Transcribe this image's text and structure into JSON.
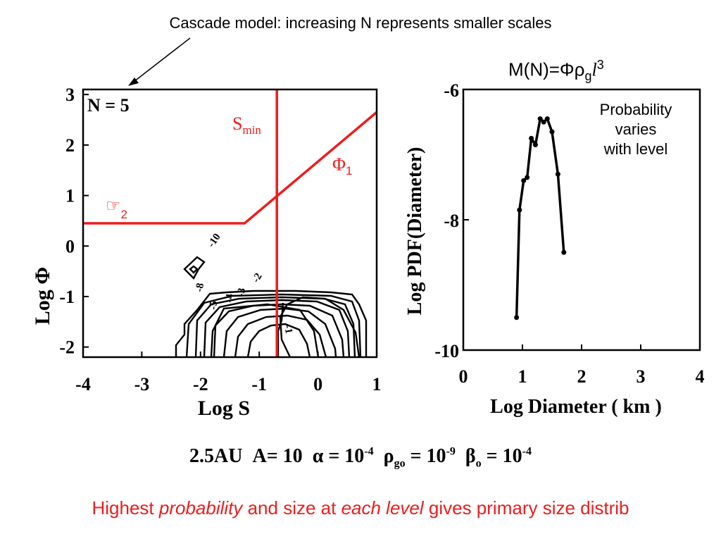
{
  "header": {
    "cascade_note": "Cascade model: increasing N represents smaller scales",
    "formula": {
      "main": "M(N)=Φρ",
      "sub": "g",
      "l": "l",
      "sup": "3"
    },
    "probability_note": [
      "Probability",
      "varies",
      "with level"
    ]
  },
  "params_line": {
    "au": "2.5AU",
    "a": "A= 10",
    "alpha": "α = 10",
    "alpha_exp": "-4",
    "rho": "ρ",
    "rho_sub": "go",
    "rho_val": " = 10",
    "rho_exp": "-9",
    "beta": "β",
    "beta_sub": "o",
    "beta_val": " = 10",
    "beta_exp": "-4"
  },
  "footer": {
    "part1": "Highest ",
    "part2": "probability",
    "part3": " and size at ",
    "part4": "each level",
    "part5": " gives primary size distrib"
  },
  "colors": {
    "accent_red": "#ee1c1c",
    "ink": "#000000",
    "background": "#ffffff"
  },
  "chart_data": [
    {
      "type": "contour",
      "panel_label": "N =  5",
      "xlabel": "Log S",
      "ylabel": "Log Φ",
      "xlim": [
        -4,
        1
      ],
      "ylim": [
        -2.2,
        3.1
      ],
      "xticks": [
        "-4",
        "-3",
        "-2",
        "-1",
        "0",
        "1"
      ],
      "yticks": [
        "3",
        "2",
        "1",
        "0",
        "-1",
        "-2"
      ],
      "contour_labels": [
        "-10",
        "-8",
        "-5",
        "-3",
        "-2",
        "-1",
        "-4"
      ],
      "annotations": {
        "smin_main": "S",
        "smin_sub": "min",
        "phi1_main": "Φ",
        "phi1_sub": "1",
        "phi2_main": "☞",
        "phi2_sub": "2"
      },
      "lines": {
        "smin_logS": -0.7,
        "phi2_logPhi": 0.45,
        "phi2_end_logS": -1.25,
        "phi1_end": [
          1.0,
          2.65
        ]
      }
    },
    {
      "type": "line",
      "xlabel": "Log Diameter ( km )",
      "ylabel": "Log PDF(Diameter)",
      "xlim": [
        0,
        4
      ],
      "ylim": [
        -10,
        -6
      ],
      "xticks": [
        "0",
        "1",
        "2",
        "3",
        "4"
      ],
      "yticks": [
        "-6",
        "-8",
        "-10"
      ],
      "x": [
        0.9,
        0.95,
        1.02,
        1.08,
        1.15,
        1.22,
        1.3,
        1.36,
        1.42,
        1.5,
        1.6,
        1.7
      ],
      "y": [
        -9.5,
        -7.85,
        -7.4,
        -7.35,
        -6.75,
        -6.85,
        -6.45,
        -6.5,
        -6.45,
        -6.65,
        -7.3,
        -8.5
      ]
    }
  ]
}
